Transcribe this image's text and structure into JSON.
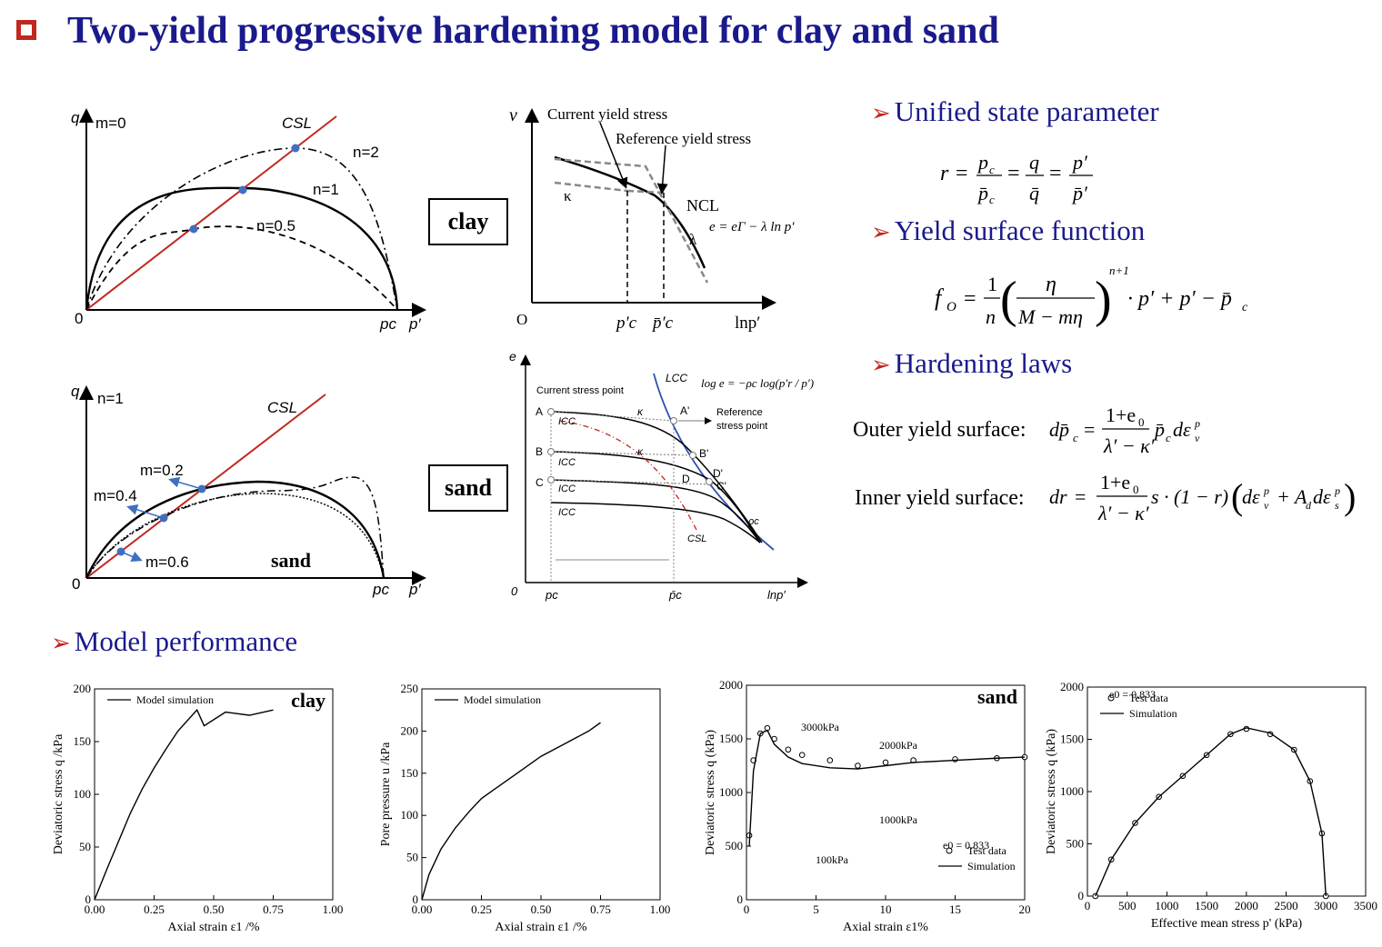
{
  "title": "Two-yield progressive hardening model for clay and sand",
  "box_labels": {
    "clay": "clay",
    "sand": "sand"
  },
  "bullets": {
    "state": "Unified state parameter",
    "yield": "Yield surface function",
    "hardening": "Hardening laws",
    "performance": "Model performance"
  },
  "equations": {
    "outer_label": "Outer yield surface:",
    "inner_label": "Inner yield surface:"
  },
  "diagram_clay_yield": {
    "q": "q",
    "p": "p′",
    "pc": "pc",
    "origin": "0",
    "m": "m=0",
    "csl": "CSL",
    "n2": "n=2",
    "n1": "n=1",
    "n05": "n=0.5"
  },
  "diagram_clay_ncl": {
    "v": "v",
    "origin": "O",
    "current": "Current yield stress",
    "reference": "Reference yield stress",
    "kappa": "κ",
    "ncl": "NCL",
    "lambda": "λ",
    "eq": "e = eΓ − λ ln p′",
    "pc": "p′c",
    "pcbar": "p̄′c",
    "lnp": "lnp′"
  },
  "diagram_sand_yield": {
    "q": "q",
    "p": "p′",
    "pc": "pc",
    "origin": "0",
    "n1": "n=1",
    "csl": "CSL",
    "m02": "m=0.2",
    "m04": "m=0.4",
    "m06": "m=0.6",
    "sand": "sand"
  },
  "diagram_sand_lcc": {
    "e": "e",
    "origin": "0",
    "lcc": "LCC",
    "current": "Current stress point",
    "reference1": "Reference",
    "reference2": "stress point",
    "icc": "ICC",
    "kappa": "κ",
    "csl": "CSL",
    "rhoc": "ρc",
    "pc": "pc",
    "pcbar": "p̄c",
    "lnp": "lnp′",
    "A": "A",
    "B": "B",
    "C": "C",
    "Ap": "A'",
    "Bp": "B'",
    "D": "D",
    "Dp": "D'",
    "Cp": "C'"
  },
  "chart_data": [
    {
      "type": "line",
      "title": "clay",
      "xlabel": "Axial strain ε1 /%",
      "ylabel": "Deviatoric stress q /kPa",
      "xlim": [
        0,
        1.0
      ],
      "ylim": [
        0,
        200
      ],
      "xticks": [
        "0.00",
        "0.25",
        "0.50",
        "0.75",
        "1.00"
      ],
      "yticks": [
        "0",
        "50",
        "100",
        "150",
        "200"
      ],
      "legend": "top-left",
      "series": [
        {
          "name": "Model simulation",
          "x": [
            0.0,
            0.05,
            0.1,
            0.15,
            0.2,
            0.25,
            0.3,
            0.35,
            0.43,
            0.46,
            0.55,
            0.65,
            0.75
          ],
          "y": [
            0,
            28,
            55,
            82,
            105,
            125,
            143,
            160,
            180,
            165,
            178,
            175,
            180
          ]
        }
      ]
    },
    {
      "type": "line",
      "xlabel": "Axial strain ε1 /%",
      "ylabel": "Pore pressure u /kPa",
      "xlim": [
        0,
        1.0
      ],
      "ylim": [
        0,
        250
      ],
      "xticks": [
        "0.00",
        "0.25",
        "0.50",
        "0.75",
        "1.00"
      ],
      "yticks": [
        "0",
        "50",
        "100",
        "150",
        "200",
        "250"
      ],
      "legend": "top-left",
      "series": [
        {
          "name": "Model simulation",
          "x": [
            0.0,
            0.03,
            0.08,
            0.14,
            0.2,
            0.25,
            0.3,
            0.4,
            0.5,
            0.6,
            0.7,
            0.75
          ],
          "y": [
            0,
            30,
            60,
            85,
            105,
            120,
            130,
            150,
            170,
            185,
            200,
            210
          ]
        }
      ]
    },
    {
      "type": "scatter",
      "title": "sand",
      "xlabel": "Axial strain ε1%",
      "ylabel": "Deviatoric stress q (kPa)",
      "xlim": [
        0,
        20
      ],
      "ylim": [
        0,
        2000
      ],
      "xticks": [
        "0",
        "5",
        "10",
        "15",
        "20"
      ],
      "yticks": [
        "0",
        "500",
        "1000",
        "1500",
        "2000"
      ],
      "annotations": [
        "3000kPa",
        "2000kPa",
        "1000kPa",
        "100kPa",
        "e0 = 0.833"
      ],
      "legend": "bottom-right",
      "series": [
        {
          "name": "Test data",
          "x": [
            0.2,
            0.5,
            1,
            1.5,
            2,
            3,
            4,
            6,
            8,
            10,
            12,
            15,
            18,
            20
          ],
          "y": [
            600,
            1300,
            1550,
            1600,
            1500,
            1400,
            1350,
            1300,
            1250,
            1280,
            1300,
            1310,
            1320,
            1330
          ]
        },
        {
          "name": "Simulation",
          "x": [
            0.2,
            0.5,
            1,
            1.5,
            2,
            3,
            4,
            6,
            8,
            10,
            12,
            15,
            18,
            20
          ],
          "y": [
            500,
            1200,
            1550,
            1580,
            1450,
            1330,
            1270,
            1230,
            1220,
            1250,
            1280,
            1300,
            1320,
            1330
          ]
        }
      ]
    },
    {
      "type": "scatter",
      "xlabel": "Effective mean stress p' (kPa)",
      "ylabel": "Deviatoric stress q (kPa)",
      "xlim": [
        0,
        3500
      ],
      "ylim": [
        0,
        2000
      ],
      "xticks": [
        "0",
        "500",
        "1000",
        "1500",
        "2000",
        "2500",
        "3000",
        "3500"
      ],
      "yticks": [
        "0",
        "500",
        "1000",
        "1500",
        "2000"
      ],
      "annotations": [
        "e0 = 0.833"
      ],
      "legend": "top-left",
      "series": [
        {
          "name": "Test data",
          "x": [
            100,
            300,
            600,
            900,
            1200,
            1500,
            1800,
            2000,
            2300,
            2600,
            2800,
            2950,
            3000
          ],
          "y": [
            0,
            350,
            700,
            950,
            1150,
            1350,
            1550,
            1600,
            1550,
            1400,
            1100,
            600,
            0
          ]
        },
        {
          "name": "Simulation",
          "x": [
            100,
            300,
            600,
            900,
            1200,
            1500,
            1800,
            2000,
            2300,
            2600,
            2800,
            2950,
            3000
          ],
          "y": [
            0,
            350,
            700,
            950,
            1150,
            1350,
            1550,
            1610,
            1560,
            1400,
            1100,
            600,
            0
          ]
        }
      ]
    }
  ],
  "colors": {
    "title": "#1a1a8c",
    "accent": "#c0281f",
    "marker": "#3f6fbf",
    "lcc": "#3050b0"
  }
}
